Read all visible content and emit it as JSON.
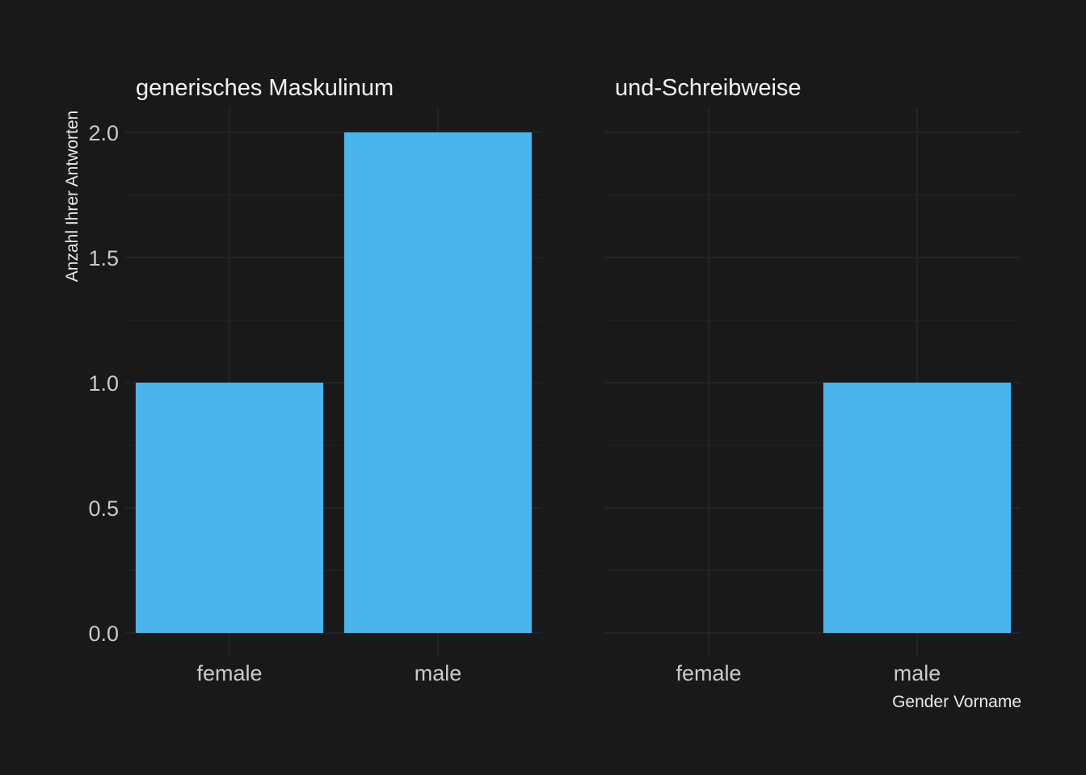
{
  "chart_data": {
    "type": "bar",
    "facets": [
      {
        "title": "generisches Maskulinum",
        "categories": [
          "female",
          "male"
        ],
        "values": [
          1,
          2
        ]
      },
      {
        "title": "und-Schreibweise",
        "categories": [
          "female",
          "male"
        ],
        "values": [
          0,
          1
        ]
      }
    ],
    "xlabel": "Gender Vorname",
    "ylabel": "Anzahl Ihrer Antworten",
    "ylim": [
      0,
      2.1
    ],
    "yticks": [
      "0.0",
      "0.5",
      "1.0",
      "1.5",
      "2.0"
    ],
    "ytick_values": [
      0,
      0.5,
      1,
      1.5,
      2
    ],
    "grid": true,
    "bar_color": "#4ab4ec",
    "background_color": "#191919"
  }
}
